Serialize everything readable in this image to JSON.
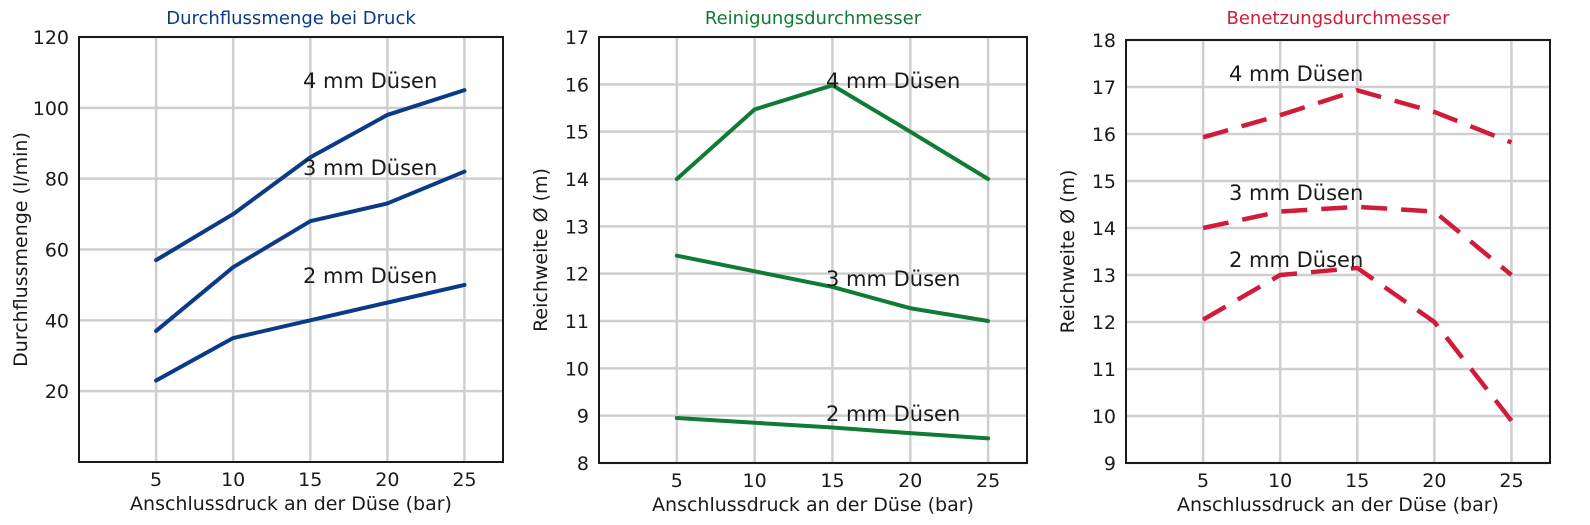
{
  "chart_data": [
    {
      "type": "line",
      "title": "Durchflussmenge bei Druck",
      "title_color": "#0b3a86",
      "line_color": "#0b3a86",
      "line_style": "solid",
      "xlabel": "Anschlussdruck an der Düse (bar)",
      "ylabel": "Durchflussmenge (l/min)",
      "x": [
        5,
        10,
        15,
        20,
        25
      ],
      "xlim": [
        0,
        27.5
      ],
      "ylim": [
        0,
        120
      ],
      "xticks": [
        5,
        10,
        15,
        20,
        25
      ],
      "yticks": [
        20,
        40,
        60,
        80,
        100,
        120
      ],
      "grid": true,
      "series": [
        {
          "name": "4 mm Düsen",
          "values": [
            57,
            70,
            86,
            98,
            105
          ]
        },
        {
          "name": "3 mm Düsen",
          "values": [
            37,
            55,
            68,
            73,
            82
          ]
        },
        {
          "name": "2 mm Düsen",
          "values": [
            23,
            35,
            40,
            45,
            50
          ]
        }
      ]
    },
    {
      "type": "line",
      "title": "Reinigungsdurchmesser",
      "title_color": "#117a34",
      "line_color": "#117a34",
      "line_style": "solid",
      "xlabel": "Anschlussdruck an der Düse (bar)",
      "ylabel": "Reichweite Ø (m)",
      "x": [
        5,
        10,
        15,
        20,
        25
      ],
      "xlim": [
        0,
        27.5
      ],
      "ylim": [
        8,
        17
      ],
      "xticks": [
        5,
        10,
        15,
        20,
        25
      ],
      "yticks": [
        8,
        9,
        10,
        11,
        12,
        13,
        14,
        15,
        16,
        17
      ],
      "grid": true,
      "series": [
        {
          "name": "4 mm Düsen",
          "values": [
            14,
            15.47,
            15.98,
            15.0,
            14
          ]
        },
        {
          "name": "3 mm Düsen",
          "values": [
            12.38,
            12.05,
            11.72,
            11.27,
            11.0
          ]
        },
        {
          "name": "2 mm Düsen",
          "values": [
            8.95,
            8.85,
            8.75,
            8.63,
            8.52
          ]
        }
      ]
    },
    {
      "type": "line",
      "title": "Benetzungsdurchmesser",
      "title_color": "#d01c3a",
      "line_color": "#d01c3a",
      "line_style": "dashed",
      "xlabel": "Anschlussdruck an der Düse (bar)",
      "ylabel": "Reichweite Ø (m)",
      "x": [
        5,
        10,
        15,
        20,
        25
      ],
      "xlim": [
        0,
        27.5
      ],
      "ylim": [
        9,
        18
      ],
      "xticks": [
        5,
        10,
        15,
        20,
        25
      ],
      "yticks": [
        9,
        10,
        11,
        12,
        13,
        14,
        15,
        16,
        17,
        18
      ],
      "grid": true,
      "series": [
        {
          "name": "4 mm Düsen",
          "values": [
            15.93,
            16.4,
            16.93,
            16.47,
            15.82
          ]
        },
        {
          "name": "3 mm Düsen",
          "values": [
            14.0,
            14.35,
            14.45,
            14.35,
            13.0
          ]
        },
        {
          "name": "2 mm Düsen",
          "values": [
            12.05,
            13.0,
            13.15,
            12.0,
            9.9
          ]
        }
      ]
    }
  ]
}
